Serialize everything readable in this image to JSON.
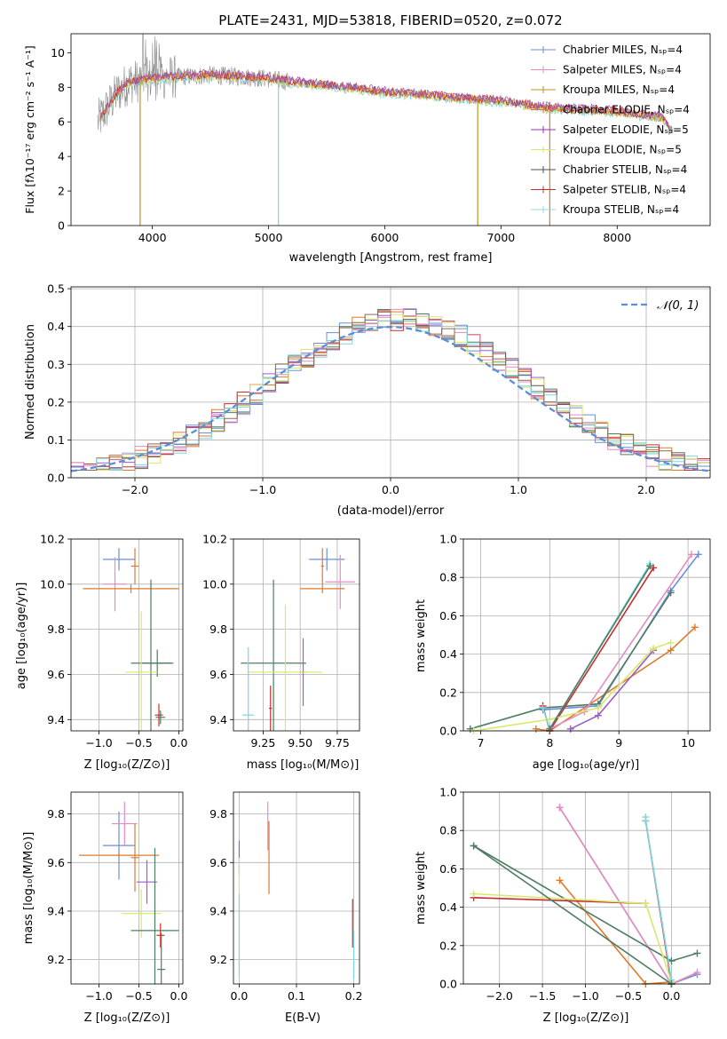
{
  "colors": [
    "#6a8fd6",
    "#e07a2a",
    "#4f7d63",
    "#c72d2d",
    "#9b5fc0",
    "#8a6a55",
    "#e58bc2",
    "#8a8a8a",
    "#d8e86a",
    "#7ad7df"
  ],
  "chart_data": [
    {
      "id": "spectrum",
      "type": "line",
      "title": "PLATE=2431, MJD=53818, FIBERID=0520, z=0.072",
      "xlabel": "wavelength [Angstrom, rest frame]",
      "ylabel": "Flux [fλ10⁻¹⁷ erg cm⁻² s⁻¹ A⁻¹]",
      "xlim": [
        3300,
        8800
      ],
      "ylim": [
        0,
        11.1
      ],
      "xticks": [
        4000,
        5000,
        6000,
        7000,
        8000
      ],
      "yticks": [
        0,
        2,
        4,
        6,
        8,
        10
      ],
      "grid": false,
      "legend_position": "top-right",
      "legend": [
        "Chabrier MILES, Nₛₚ=4",
        "Salpeter MILES, Nₛₚ=4",
        "Kroupa MILES, Nₛₚ=4",
        "Chabrier ELODIE, Nₛₚ=4",
        "Salpeter ELODIE, Nₛₚ=5",
        "Kroupa ELODIE, Nₛₚ=5",
        "Chabrier STELIB, Nₛₚ=4",
        "Salpeter STELIB, Nₛₚ=4",
        "Kroupa STELIB, Nₛₚ=4"
      ],
      "legend_colors": [
        "#6a8fd6",
        "#e58bc2",
        "#b8941f",
        "#e07a2a",
        "#9b2fb8",
        "#d8e86a",
        "#4f4f4f",
        "#c72d2d",
        "#9ad8e8"
      ],
      "data_wavelength_range": [
        3530,
        8480
      ],
      "continuum": {
        "x": [
          3550,
          3700,
          3800,
          4000,
          4200,
          4500,
          4800,
          5000,
          5200,
          5500,
          5800,
          6000,
          6300,
          6600,
          6800,
          7000,
          7200,
          7400,
          7700,
          8000,
          8200,
          8400,
          8480
        ],
        "y": [
          6.2,
          7.7,
          8.3,
          8.5,
          8.6,
          8.7,
          8.6,
          8.5,
          8.3,
          8.1,
          7.9,
          7.7,
          7.6,
          7.4,
          7.3,
          7.2,
          7.0,
          6.8,
          6.7,
          6.6,
          6.4,
          6.2,
          5.4
        ]
      }
    },
    {
      "id": "residuals",
      "type": "line",
      "xlabel": "(data-model)/error",
      "ylabel": "Normed distribution",
      "xlim": [
        -2.5,
        2.5
      ],
      "ylim": [
        0,
        0.505
      ],
      "xticks": [
        -2,
        -1,
        0,
        1,
        2
      ],
      "yticks": [
        0.0,
        0.1,
        0.2,
        0.3,
        0.4,
        0.5
      ],
      "grid": true,
      "legend_position": "top-right",
      "legend": [
        "𝒩(0, 1)"
      ],
      "bin_width": 0.1
    },
    {
      "id": "age-vs-Z",
      "type": "scatter",
      "xlabel": "Z [log₁₀(Z/Z⊙)]",
      "ylabel": "age  [log₁₀(age/yr)]",
      "xlim": [
        -1.35,
        0.05
      ],
      "ylim": [
        9.35,
        10.2
      ],
      "xticks": [
        -1.0,
        -0.5,
        0.0
      ],
      "yticks": [
        9.4,
        9.6,
        9.8,
        10.0,
        10.2
      ],
      "grid": true,
      "points": [
        {
          "x": -0.75,
          "y": 10.11,
          "xerr": 0.2,
          "yerr": 0.05,
          "c": 0
        },
        {
          "x": -0.55,
          "y": 10.08,
          "xerr": 0.05,
          "yerr": 0.08,
          "c": 1
        },
        {
          "x": -0.8,
          "y": 10.0,
          "xerr": 0.15,
          "yerr": 0.12,
          "c": 6
        },
        {
          "x": -0.6,
          "y": 9.98,
          "xerr": 0.6,
          "yerr": 0.02,
          "c": 1
        },
        {
          "x": -0.35,
          "y": 9.65,
          "xerr": 0.25,
          "yerr": 0.37,
          "c": 2
        },
        {
          "x": -0.27,
          "y": 9.65,
          "xerr": 0.2,
          "yerr": 0.06,
          "c": 2
        },
        {
          "x": -0.47,
          "y": 9.61,
          "xerr": 0.2,
          "yerr": 0.27,
          "c": 8
        },
        {
          "x": -0.25,
          "y": 9.42,
          "xerr": 0.05,
          "yerr": 0.05,
          "c": 3
        },
        {
          "x": -0.23,
          "y": 9.41,
          "xerr": 0.06,
          "yerr": 0.03,
          "c": 2
        }
      ]
    },
    {
      "id": "age-vs-mass",
      "type": "scatter",
      "xlabel": "mass [log₁₀(M/M⊙)]",
      "ylabel": "",
      "xlim": [
        9.05,
        9.9
      ],
      "ylim": [
        9.35,
        10.2
      ],
      "xticks": [
        9.25,
        9.5,
        9.75
      ],
      "yticks": [
        9.4,
        9.6,
        9.8,
        10.0,
        10.2
      ],
      "grid": true,
      "points": [
        {
          "x": 9.68,
          "y": 10.11,
          "xerr": 0.12,
          "yerr": 0.05,
          "c": 0
        },
        {
          "x": 9.65,
          "y": 10.08,
          "xerr": 0.01,
          "yerr": 0.08,
          "c": 1
        },
        {
          "x": 9.77,
          "y": 10.01,
          "xerr": 0.1,
          "yerr": 0.12,
          "c": 6
        },
        {
          "x": 9.65,
          "y": 9.98,
          "xerr": 0.15,
          "yerr": 0.02,
          "c": 1
        },
        {
          "x": 9.32,
          "y": 9.65,
          "xerr": 0.22,
          "yerr": 0.37,
          "c": 2
        },
        {
          "x": 9.52,
          "y": 9.61,
          "xerr": 0.02,
          "yerr": 0.15,
          "c": 4
        },
        {
          "x": 9.4,
          "y": 9.61,
          "xerr": 0.25,
          "yerr": 0.3,
          "c": 8
        },
        {
          "x": 9.3,
          "y": 9.45,
          "xerr": 0.01,
          "yerr": 0.1,
          "c": 3
        },
        {
          "x": 9.15,
          "y": 9.42,
          "xerr": 0.04,
          "yerr": 0.3,
          "c": 9
        }
      ]
    },
    {
      "id": "weight-vs-age",
      "type": "line",
      "xlabel": "age  [log₁₀(age/yr)]",
      "ylabel": "mass weight",
      "xlim": [
        6.75,
        10.32
      ],
      "ylim": [
        0,
        1.0
      ],
      "xticks": [
        7,
        8,
        9,
        10
      ],
      "yticks": [
        0.0,
        0.2,
        0.4,
        0.6,
        0.8,
        1.0
      ],
      "grid": true,
      "series": [
        {
          "c": 0,
          "x": [
            7.9,
            8.7,
            9.75,
            10.15
          ],
          "y": [
            0.11,
            0.13,
            0.73,
            0.92
          ]
        },
        {
          "c": 1,
          "x": [
            7.8,
            8.0,
            9.75,
            10.1
          ],
          "y": [
            0.01,
            0.0,
            0.42,
            0.54
          ]
        },
        {
          "c": 2,
          "x": [
            6.85,
            7.9,
            8.7,
            9.75
          ],
          "y": [
            0.01,
            0.12,
            0.14,
            0.72
          ]
        },
        {
          "c": 3,
          "x": [
            7.9,
            8.0,
            9.5
          ],
          "y": [
            0.13,
            0.0,
            0.85
          ]
        },
        {
          "c": 4,
          "x": [
            8.3,
            8.7,
            9.5
          ],
          "y": [
            0.01,
            0.08,
            0.42
          ]
        },
        {
          "c": 6,
          "x": [
            8.0,
            8.5,
            10.05
          ],
          "y": [
            0.01,
            0.1,
            0.92
          ]
        },
        {
          "c": 8,
          "x": [
            6.9,
            8.0,
            8.7,
            9.5,
            9.75
          ],
          "y": [
            0.0,
            0.06,
            0.12,
            0.43,
            0.46
          ]
        },
        {
          "c": 9,
          "x": [
            7.9,
            8.0,
            9.45
          ],
          "y": [
            0.12,
            0.01,
            0.87
          ]
        },
        {
          "c": 2,
          "x": [
            8.0,
            9.45
          ],
          "y": [
            0.01,
            0.86
          ]
        }
      ]
    },
    {
      "id": "mass-vs-Z",
      "type": "scatter",
      "xlabel": "Z [log₁₀(Z/Z⊙)]",
      "ylabel": "mass [log₁₀(M/M⊙)]",
      "xlim": [
        -1.35,
        0.05
      ],
      "ylim": [
        9.1,
        9.89
      ],
      "xticks": [
        -1.0,
        -0.5,
        0.0
      ],
      "yticks": [
        9.2,
        9.4,
        9.6,
        9.8
      ],
      "grid": true,
      "points": [
        {
          "x": -0.75,
          "y": 9.67,
          "xerr": 0.2,
          "yerr": 0.14,
          "c": 0
        },
        {
          "x": -0.68,
          "y": 9.76,
          "xerr": 0.16,
          "yerr": 0.09,
          "c": 6
        },
        {
          "x": -0.55,
          "y": 9.62,
          "xerr": 0.05,
          "yerr": 0.14,
          "c": 1
        },
        {
          "x": -0.75,
          "y": 9.63,
          "xerr": 0.5,
          "yerr": 0.01,
          "c": 1
        },
        {
          "x": -0.4,
          "y": 9.52,
          "xerr": 0.13,
          "yerr": 0.09,
          "c": 4
        },
        {
          "x": -0.47,
          "y": 9.39,
          "xerr": 0.25,
          "yerr": 0.1,
          "c": 8
        },
        {
          "x": -0.3,
          "y": 9.32,
          "xerr": 0.3,
          "yerr": 0.34,
          "c": 2
        },
        {
          "x": -0.23,
          "y": 9.3,
          "xerr": 0.05,
          "yerr": 0.05,
          "c": 3
        },
        {
          "x": -0.22,
          "y": 9.16,
          "xerr": 0.05,
          "yerr": 0.15,
          "c": 2
        }
      ]
    },
    {
      "id": "mass-vs-EBV",
      "type": "scatter",
      "xlabel": "E(B-V)",
      "ylabel": "",
      "xlim": [
        -0.01,
        0.21
      ],
      "ylim": [
        9.1,
        9.89
      ],
      "xticks": [
        0.0,
        0.1,
        0.2
      ],
      "yticks": [
        9.2,
        9.4,
        9.6,
        9.8
      ],
      "grid": true,
      "points": [
        {
          "x": 0.0,
          "y": 9.62,
          "xerr": 0,
          "yerr": 0.07,
          "c": 4
        },
        {
          "x": 0.0,
          "y": 9.4,
          "xerr": 0,
          "yerr": 0.22,
          "c": 8
        },
        {
          "x": 0.0,
          "y": 9.3,
          "xerr": 0,
          "yerr": 0.17,
          "c": 9
        },
        {
          "x": 0.05,
          "y": 9.75,
          "xerr": 0,
          "yerr": 0.1,
          "c": 6
        },
        {
          "x": 0.052,
          "y": 9.62,
          "xerr": 0,
          "yerr": 0.15,
          "c": 1
        },
        {
          "x": 0.198,
          "y": 9.35,
          "xerr": 0,
          "yerr": 0.1,
          "c": 3
        },
        {
          "x": 0.2,
          "y": 9.22,
          "xerr": 0,
          "yerr": 0.1,
          "c": 9
        }
      ]
    },
    {
      "id": "weight-vs-Z",
      "type": "line",
      "xlabel": "Z [log₁₀(Z/Z⊙)]",
      "ylabel": "mass weight",
      "xlim": [
        -2.42,
        0.45
      ],
      "ylim": [
        0,
        1.0
      ],
      "xticks": [
        -2.0,
        -1.5,
        -1.0,
        -0.5,
        0.0
      ],
      "yticks": [
        0.0,
        0.2,
        0.4,
        0.6,
        0.8,
        1.0
      ],
      "grid": true,
      "series": [
        {
          "c": 0,
          "x": [
            -1.3,
            0.0,
            0.3
          ],
          "y": [
            0.92,
            0.0,
            0.05
          ]
        },
        {
          "c": 6,
          "x": [
            -1.3,
            0.0,
            0.3
          ],
          "y": [
            0.92,
            0.0,
            0.06
          ]
        },
        {
          "c": 1,
          "x": [
            -1.3,
            -0.3,
            0.0
          ],
          "y": [
            0.54,
            0.0,
            0.01
          ]
        },
        {
          "c": 2,
          "x": [
            -2.3,
            0.0,
            0.3
          ],
          "y": [
            0.72,
            0.12,
            0.16
          ]
        },
        {
          "c": 3,
          "x": [
            -2.3,
            -0.3
          ],
          "y": [
            0.45,
            0.42
          ]
        },
        {
          "c": 3,
          "x": [
            -0.3,
            0.0
          ],
          "y": [
            0.85,
            0.0
          ]
        },
        {
          "c": 8,
          "x": [
            -2.3,
            -0.3,
            0.0
          ],
          "y": [
            0.47,
            0.42,
            0.01
          ]
        },
        {
          "c": 9,
          "x": [
            -0.3,
            -0.3,
            0.0
          ],
          "y": [
            0.87,
            0.85,
            0.02
          ]
        },
        {
          "c": 2,
          "x": [
            -2.3,
            0.0
          ],
          "y": [
            0.72,
            0.0
          ]
        }
      ]
    }
  ]
}
